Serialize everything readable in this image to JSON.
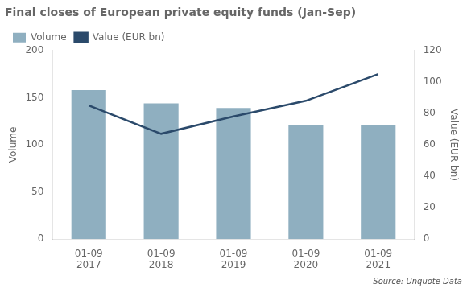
{
  "chart_data": {
    "type": "bar",
    "title": "Final closes of European private equity funds (Jan-Sep)",
    "source": "Source: Unquote Data",
    "categories": [
      "01-09\n2017",
      "01-09\n2018",
      "01-09\n2019",
      "01-09\n2020",
      "01-09\n2021"
    ],
    "series": [
      {
        "name": "Volume",
        "type": "bar",
        "color": "#8fafc0",
        "values": [
          158,
          144,
          139,
          121,
          121
        ]
      },
      {
        "name": "Value (EUR bn)",
        "type": "line",
        "color": "#2b4a6b",
        "axis": "y2",
        "values": [
          85,
          67,
          78,
          88,
          105
        ]
      }
    ],
    "ylabel": "Volume",
    "y2label": "Value (EUR bn)",
    "ylim": [
      0,
      200
    ],
    "yticks": [
      0,
      50,
      100,
      150,
      200
    ],
    "y2lim": [
      0,
      120
    ],
    "y2ticks": [
      0,
      20,
      40,
      60,
      80,
      100,
      120
    ],
    "grid": false,
    "legend": "top-left"
  }
}
